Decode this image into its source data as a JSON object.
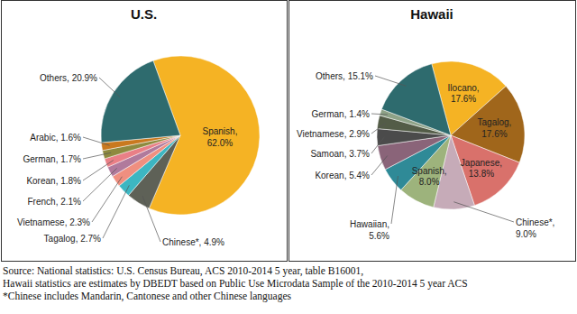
{
  "chart_data": [
    {
      "type": "pie",
      "title": "U.S.",
      "categories": [
        "Spanish",
        "Chinese*",
        "Tagalog",
        "Vietnamese",
        "French",
        "Korean",
        "German",
        "Arabic",
        "Others"
      ],
      "values": [
        62.0,
        4.9,
        2.7,
        2.3,
        2.1,
        1.8,
        1.7,
        1.6,
        20.9
      ],
      "value_labels": [
        "62.0%",
        "4.9%",
        "2.7%",
        "2.3%",
        "2.1%",
        "1.8%",
        "1.7%",
        "1.6%",
        "20.9%"
      ],
      "colors": [
        "#f5b324",
        "#5e6157",
        "#3db6c2",
        "#ef8f80",
        "#b07a9c",
        "#e97f86",
        "#8e8a3f",
        "#c9791f",
        "#2e6b6e"
      ],
      "data_labels": true
    },
    {
      "type": "pie",
      "title": "Hawaii",
      "categories": [
        "Ilocano",
        "Tagalog",
        "Japanese",
        "Chinese*",
        "Spanish",
        "Hawaiian",
        "Korean",
        "Samoan",
        "Vietnamese",
        "German",
        "Others"
      ],
      "values": [
        17.6,
        17.6,
        13.8,
        9.0,
        8.0,
        5.6,
        5.4,
        3.7,
        2.9,
        1.4,
        15.1
      ],
      "value_labels": [
        "17.6%",
        "17.6%",
        "13.8%",
        "9.0%",
        "8.0%",
        "5.6%",
        "5.4%",
        "3.7%",
        "2.9%",
        "1.4%",
        "15.1%"
      ],
      "colors": [
        "#f5b324",
        "#a0661b",
        "#d9716b",
        "#c6abb8",
        "#9db37c",
        "#2f8a97",
        "#8a6479",
        "#4b4b4b",
        "#535c47",
        "#8ea287",
        "#2e6b6e"
      ],
      "data_labels": true
    }
  ],
  "footer": [
    "Source: National statistics: U.S. Census Bureau, ACS 2010-2014 5 year, table B16001,",
    "Hawaii statistics are estimates by DBEDT based on Public Use Microdata Sample of the 2010-2014 5 year ACS",
    "*Chinese includes Mandarin, Cantonese and other Chinese languages"
  ]
}
